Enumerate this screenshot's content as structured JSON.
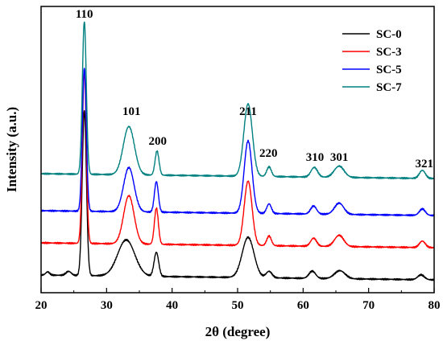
{
  "chart_data": {
    "type": "line",
    "xlabel": "2θ (degree)",
    "ylabel": "Intensity (a.u.)",
    "xlim": [
      20,
      80
    ],
    "xticks": [
      20,
      30,
      40,
      50,
      60,
      70,
      80
    ],
    "yticks_shown": false,
    "grid": false,
    "legend_position": "top-right",
    "series": [
      {
        "name": "SC-0",
        "color": "#000000",
        "offset": 0
      },
      {
        "name": "SC-3",
        "color": "#ff0000",
        "offset": 40
      },
      {
        "name": "SC-5",
        "color": "#0000ff",
        "offset": 80
      },
      {
        "name": "SC-7",
        "color": "#008080",
        "offset": 126
      }
    ],
    "peaks": [
      {
        "label": "110",
        "x": 26.6
      },
      {
        "label": "101",
        "x": 33.8
      },
      {
        "label": "200",
        "x": 37.8
      },
      {
        "label": "211",
        "x": 51.6
      },
      {
        "label": "220",
        "x": 54.7
      },
      {
        "label": "310",
        "x": 61.8
      },
      {
        "label": "301",
        "x": 65.5
      },
      {
        "label": "321",
        "x": 78.5
      }
    ]
  }
}
